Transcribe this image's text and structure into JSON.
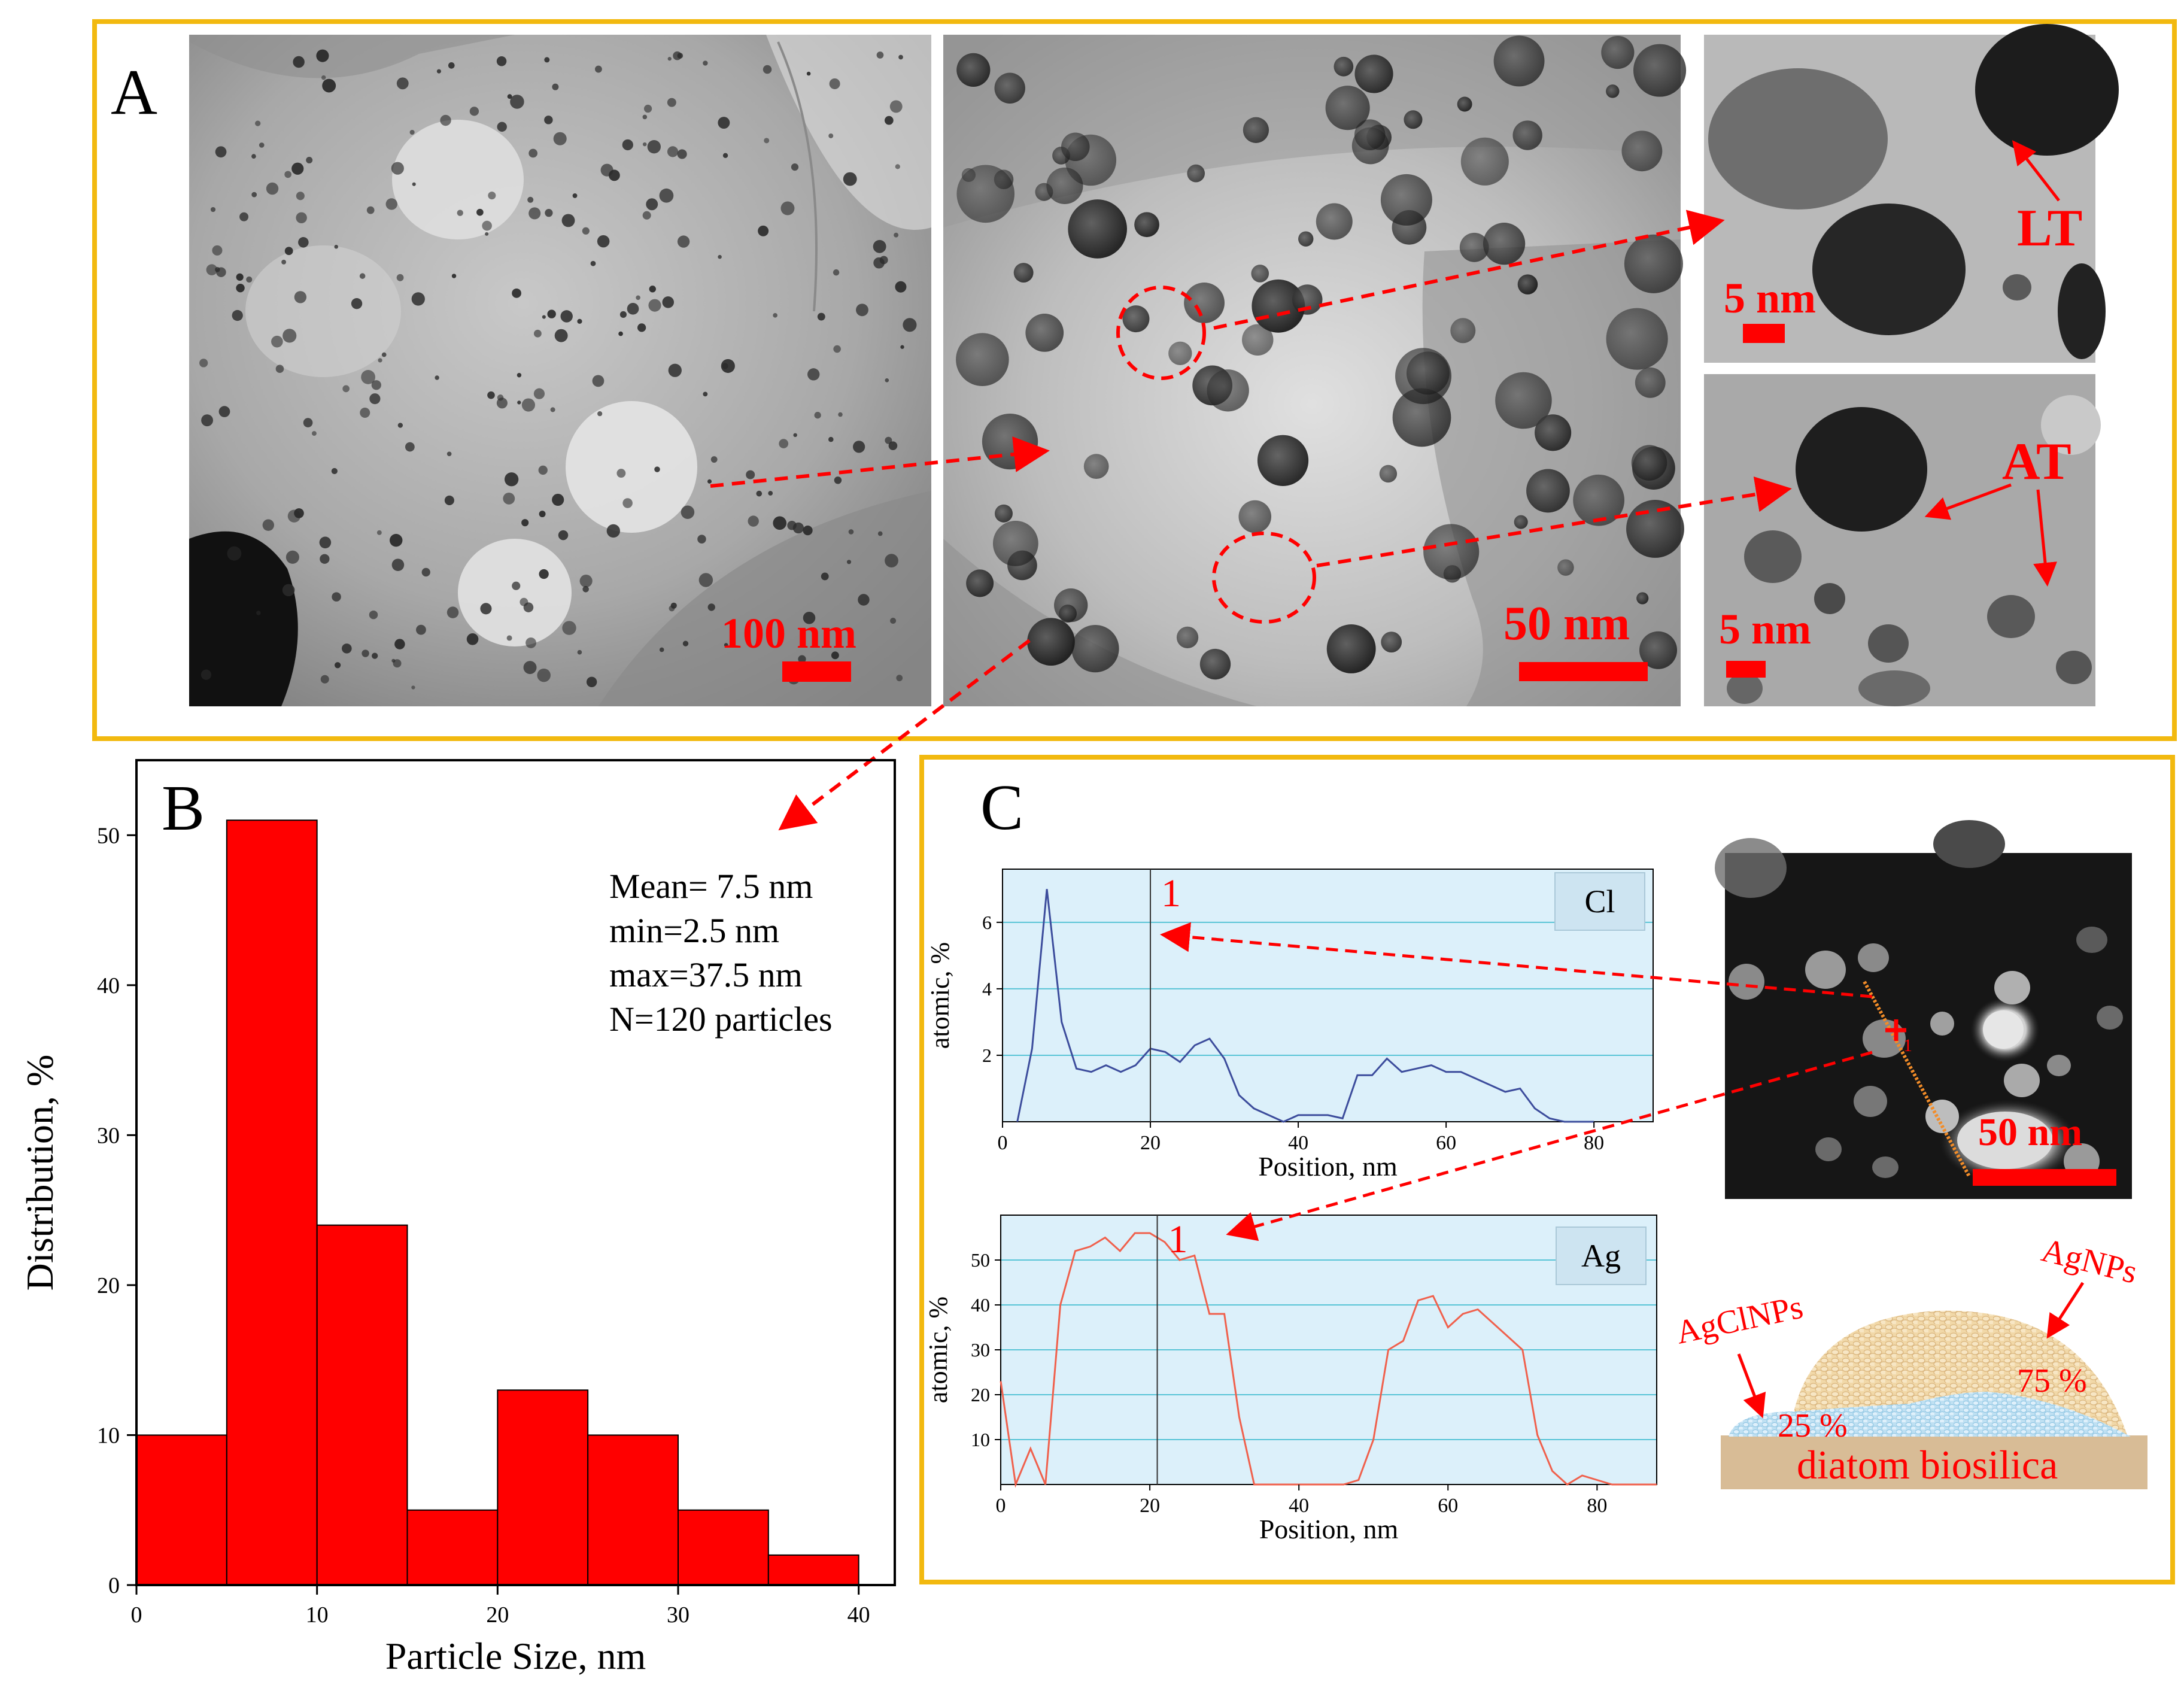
{
  "colors": {
    "frame": "#f2b90f",
    "accent_red": "#ff0000",
    "hist_fill": "#ff0000",
    "chart_bg": "#dcf0fa",
    "chart_grid": "#58c4d6",
    "cl_line": "#3c4c9c",
    "ag_line": "#f0604c",
    "scale_orange": "#f28c28"
  },
  "panel_labels": {
    "a": "A",
    "b": "B",
    "c": "C"
  },
  "panel_a": {
    "scale_bars": [
      "100 nm",
      "50 nm",
      "5 nm",
      "5 nm"
    ],
    "labels": {
      "lt": "LT",
      "at": "AT"
    }
  },
  "panel_b": {
    "stats": [
      "Mean= 7.5 nm",
      "min=2.5 nm",
      "max=37.5 nm",
      "N=120 particles"
    ]
  },
  "panel_c": {
    "marker": "1",
    "stem_image_scale": "50 nm",
    "schematic": {
      "agnps": "AgNPs",
      "agclnps": "AgClNPs",
      "pct_25": "25 %",
      "pct_75": "75 %",
      "base": "diatom biosilica"
    }
  },
  "chart_data": [
    {
      "type": "bar",
      "xlabel": "Particle Size, nm",
      "ylabel": "Distribution, %",
      "bins": [
        [
          0,
          5
        ],
        [
          5,
          10
        ],
        [
          10,
          15
        ],
        [
          15,
          20
        ],
        [
          20,
          25
        ],
        [
          25,
          30
        ],
        [
          30,
          35
        ],
        [
          35,
          40
        ]
      ],
      "values": [
        10,
        51,
        24,
        5,
        13,
        10,
        5,
        2
      ],
      "xlim": [
        0,
        42
      ],
      "ylim": [
        0,
        55
      ],
      "xticks": [
        0,
        10,
        20,
        30,
        40
      ],
      "yticks": [
        0,
        10,
        20,
        30,
        40,
        50
      ],
      "grid": false
    },
    {
      "type": "line",
      "legend": "Cl",
      "xlabel": "Position, nm",
      "ylabel": "atomic, %",
      "xlim": [
        0,
        88
      ],
      "ylim": [
        0,
        7.6
      ],
      "xticks": [
        0,
        20,
        40,
        60,
        80
      ],
      "yticks": [
        2,
        4,
        6
      ],
      "marker_x": 20,
      "marker_label": "1",
      "x": [
        2,
        4,
        6,
        8,
        10,
        12,
        14,
        16,
        18,
        20,
        22,
        24,
        26,
        28,
        30,
        32,
        34,
        36,
        38,
        40,
        42,
        44,
        46,
        48,
        50,
        52,
        54,
        56,
        58,
        60,
        62,
        64,
        66,
        68,
        70,
        72,
        74,
        76,
        78,
        80
      ],
      "y": [
        0,
        2.2,
        7.0,
        3.0,
        1.6,
        1.5,
        1.7,
        1.5,
        1.7,
        2.2,
        2.1,
        1.8,
        2.3,
        2.5,
        1.9,
        0.8,
        0.4,
        0.2,
        0.0,
        0.2,
        0.2,
        0.2,
        0.1,
        1.4,
        1.4,
        1.9,
        1.5,
        1.6,
        1.7,
        1.5,
        1.5,
        1.3,
        1.1,
        0.9,
        1.0,
        0.4,
        0.1,
        0.0,
        0.0,
        0.0
      ],
      "grid": true
    },
    {
      "type": "line",
      "legend": "Ag",
      "xlabel": "Position, nm",
      "ylabel": "atomic, %",
      "xlim": [
        0,
        88
      ],
      "ylim": [
        0,
        60
      ],
      "xticks": [
        0,
        20,
        40,
        60,
        80
      ],
      "yticks": [
        10,
        20,
        30,
        40,
        50
      ],
      "marker_x": 21,
      "marker_label": "1",
      "x": [
        0,
        2,
        4,
        6,
        8,
        10,
        12,
        14,
        16,
        18,
        20,
        22,
        24,
        26,
        28,
        30,
        32,
        34,
        36,
        38,
        40,
        42,
        44,
        46,
        48,
        50,
        52,
        54,
        56,
        58,
        60,
        62,
        64,
        66,
        68,
        70,
        72,
        74,
        76,
        78,
        80,
        82,
        84,
        86,
        88
      ],
      "y": [
        23,
        0,
        8,
        0,
        40,
        52,
        53,
        55,
        52,
        56,
        56,
        54,
        50,
        51,
        38,
        38,
        15,
        0,
        0,
        0,
        0,
        0,
        0,
        0,
        1,
        10,
        30,
        32,
        41,
        42,
        35,
        38,
        39,
        36,
        33,
        30,
        11,
        3,
        0,
        2,
        1,
        0,
        0,
        0,
        0
      ],
      "grid": true
    }
  ]
}
